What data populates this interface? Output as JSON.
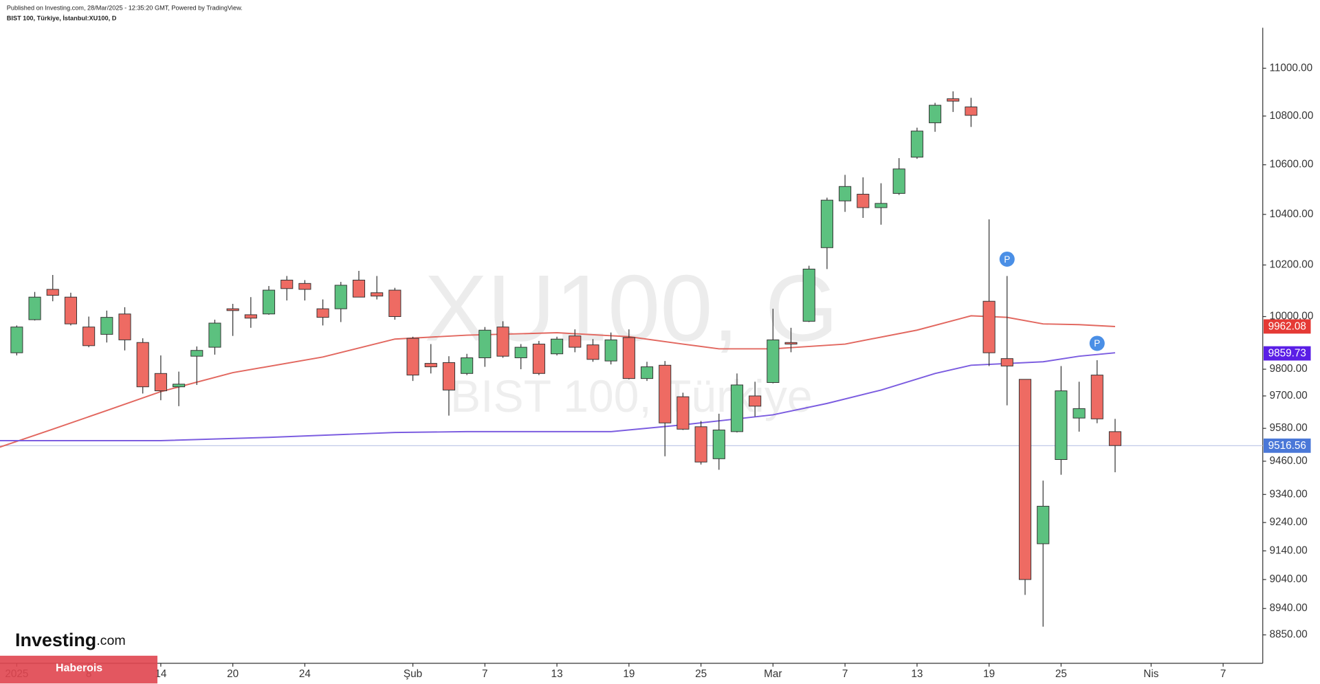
{
  "header": {
    "published": "Published on Investing.com, 28/Mar/2025 - 12:35:20 GMT, Powered by TradingView.",
    "symbol": "BIST 100, Türkiye, İstanbul:XU100, D"
  },
  "watermark": {
    "symbol": "XU100, G",
    "name": "BIST 100, Türkiye"
  },
  "logo": [
    "Investing",
    ".com"
  ],
  "banner": "Haberois",
  "chart_data": {
    "type": "candlestick",
    "log": true,
    "up_color": "#5cc17f",
    "down_color": "#ee6b63",
    "x": [
      0,
      1,
      2,
      3,
      4,
      5,
      6,
      7,
      8,
      9,
      10,
      11,
      12,
      13,
      14,
      15,
      16,
      17,
      18,
      19,
      20,
      21,
      22,
      23,
      24,
      25,
      26,
      27,
      28,
      29,
      30,
      31,
      32,
      33,
      34,
      35,
      36,
      37,
      38,
      39,
      40,
      41,
      42,
      43,
      44,
      45,
      46,
      47,
      48,
      49,
      50,
      51,
      52,
      53,
      54,
      55,
      56,
      57,
      58,
      59,
      60,
      61
    ],
    "open": [
      9862,
      9988,
      10105,
      10075,
      9960,
      9932,
      10010,
      9901,
      9784,
      9734,
      9849,
      9883,
      10030,
      10007,
      10010,
      10141,
      10128,
      10030,
      10030,
      10141,
      10092,
      10102,
      9917,
      9822,
      9825,
      9784,
      9843,
      9960,
      9843,
      9895,
      9858,
      9926,
      9892,
      9831,
      9920,
      9765,
      9815,
      9697,
      9586,
      9469,
      9568,
      9700,
      9750,
      9901,
      9982,
      10268,
      10454,
      10481,
      10427,
      10484,
      10631,
      10772,
      10872,
      10838,
      10059,
      9840,
      9762,
      9165,
      9466,
      9618,
      9778,
      9568
    ],
    "high": [
      9966,
      10095,
      10161,
      10092,
      10000,
      10023,
      10036,
      9917,
      9852,
      9791,
      9886,
      9988,
      10049,
      10075,
      10118,
      10157,
      10141,
      10066,
      10134,
      10177,
      10157,
      10111,
      9923,
      9895,
      9849,
      9858,
      9960,
      9982,
      9895,
      9907,
      9923,
      9951,
      9914,
      9939,
      9951,
      9828,
      9831,
      9712,
      9607,
      9634,
      9784,
      9753,
      10030,
      9957,
      10197,
      10467,
      10559,
      10549,
      10525,
      10627,
      10752,
      10855,
      10903,
      10876,
      10380,
      10157,
      9762,
      9390,
      9812,
      9753,
      9834,
      9615
    ],
    "low": [
      9852,
      9985,
      10059,
      9966,
      9883,
      9901,
      9871,
      9709,
      9684,
      9662,
      9741,
      9855,
      9926,
      9957,
      10007,
      10062,
      10062,
      9966,
      9979,
      10075,
      10066,
      9988,
      9756,
      9784,
      9627,
      9778,
      9809,
      9843,
      9800,
      9778,
      9852,
      9864,
      9828,
      9818,
      9762,
      9756,
      9478,
      9574,
      9448,
      9429,
      9565,
      9624,
      9747,
      9864,
      9979,
      10184,
      10410,
      10386,
      10359,
      10478,
      10624,
      10735,
      10817,
      10755,
      9812,
      9665,
      8987,
      8878,
      9411,
      9568,
      9599,
      9420
    ],
    "close": [
      9960,
      10075,
      10082,
      9972,
      9889,
      9997,
      9911,
      9734,
      9719,
      9744,
      9871,
      9975,
      10023,
      9994,
      10102,
      10108,
      10105,
      9997,
      10121,
      10075,
      10079,
      10000,
      9778,
      9809,
      9722,
      9843,
      9948,
      9849,
      9883,
      9784,
      9914,
      9883,
      9837,
      9911,
      9765,
      9809,
      9600,
      9577,
      9457,
      9574,
      9741,
      9662,
      9911,
      9895,
      10184,
      10457,
      10512,
      10427,
      10444,
      10583,
      10738,
      10845,
      10862,
      10803,
      9862,
      9812,
      9040,
      9298,
      9719,
      9653,
      9615,
      9517
    ],
    "lines": [
      {
        "color": "#e2675f",
        "x": [
          -1,
          2,
          5,
          8,
          12,
          17,
          21,
          25,
          30,
          34,
          37,
          39,
          42,
          46,
          50,
          53,
          55,
          57,
          59,
          61
        ],
        "values": [
          9510,
          9577,
          9646,
          9716,
          9787,
          9846,
          9914,
          9929,
          9938,
          9923,
          9895,
          9877,
          9877,
          9895,
          9948,
          10003,
          9997,
          9972,
          9969,
          9962
        ]
      },
      {
        "color": "#7b5ce0",
        "x": [
          -1,
          8,
          14,
          21,
          25,
          33,
          37,
          40,
          42,
          45,
          48,
          51,
          53,
          57,
          59,
          61
        ],
        "values": [
          9535,
          9535,
          9547,
          9565,
          9568,
          9568,
          9593,
          9615,
          9630,
          9672,
          9722,
          9784,
          9815,
          9828,
          9849,
          9862
        ]
      }
    ],
    "price_labels": [
      {
        "value": 9962.08,
        "color": "#e53a35"
      },
      {
        "value": 9859.73,
        "color": "#5a1ee6"
      },
      {
        "value": 9516.56,
        "color": "#4a78d8"
      }
    ],
    "markers": [
      {
        "x": 55,
        "label": "P"
      },
      {
        "x": 60,
        "label": "P"
      }
    ],
    "marker_color": "#4a8fe6",
    "xlim": [
      -0.93,
      69.2
    ],
    "ylim": [
      8754,
      11165
    ],
    "yticks": [
      {
        "value": 11000,
        "label": "11000.00"
      },
      {
        "value": 10800,
        "label": "10800.00"
      },
      {
        "value": 10600,
        "label": "10600.00"
      },
      {
        "value": 10400,
        "label": "10400.00"
      },
      {
        "value": 10200,
        "label": "10200.00"
      },
      {
        "value": 10000,
        "label": "10000.00"
      },
      {
        "value": 9800,
        "label": "9800.00"
      },
      {
        "value": 9700,
        "label": "9700.00"
      },
      {
        "value": 9580,
        "label": "9580.00"
      },
      {
        "value": 9460,
        "label": "9460.00"
      },
      {
        "value": 9340,
        "label": "9340.00"
      },
      {
        "value": 9240,
        "label": "9240.00"
      },
      {
        "value": 9140,
        "label": "9140.00"
      },
      {
        "value": 9040,
        "label": "9040.00"
      },
      {
        "value": 8940,
        "label": "8940.00"
      },
      {
        "value": 8850,
        "label": "8850.00"
      }
    ],
    "xticks": [
      {
        "value": 0,
        "label": "2025"
      },
      {
        "value": 4,
        "label": "8"
      },
      {
        "value": 8,
        "label": "14"
      },
      {
        "value": 12,
        "label": "20"
      },
      {
        "value": 16,
        "label": "24"
      },
      {
        "value": 22,
        "label": "Şub"
      },
      {
        "value": 26,
        "label": "7"
      },
      {
        "value": 30,
        "label": "13"
      },
      {
        "value": 34,
        "label": "19"
      },
      {
        "value": 38,
        "label": "25"
      },
      {
        "value": 42,
        "label": "Mar"
      },
      {
        "value": 46,
        "label": "7"
      },
      {
        "value": 50,
        "label": "13"
      },
      {
        "value": 54,
        "label": "19"
      },
      {
        "value": 58,
        "label": "25"
      },
      {
        "value": 63,
        "label": "Nis"
      },
      {
        "value": 67,
        "label": "7"
      }
    ]
  }
}
